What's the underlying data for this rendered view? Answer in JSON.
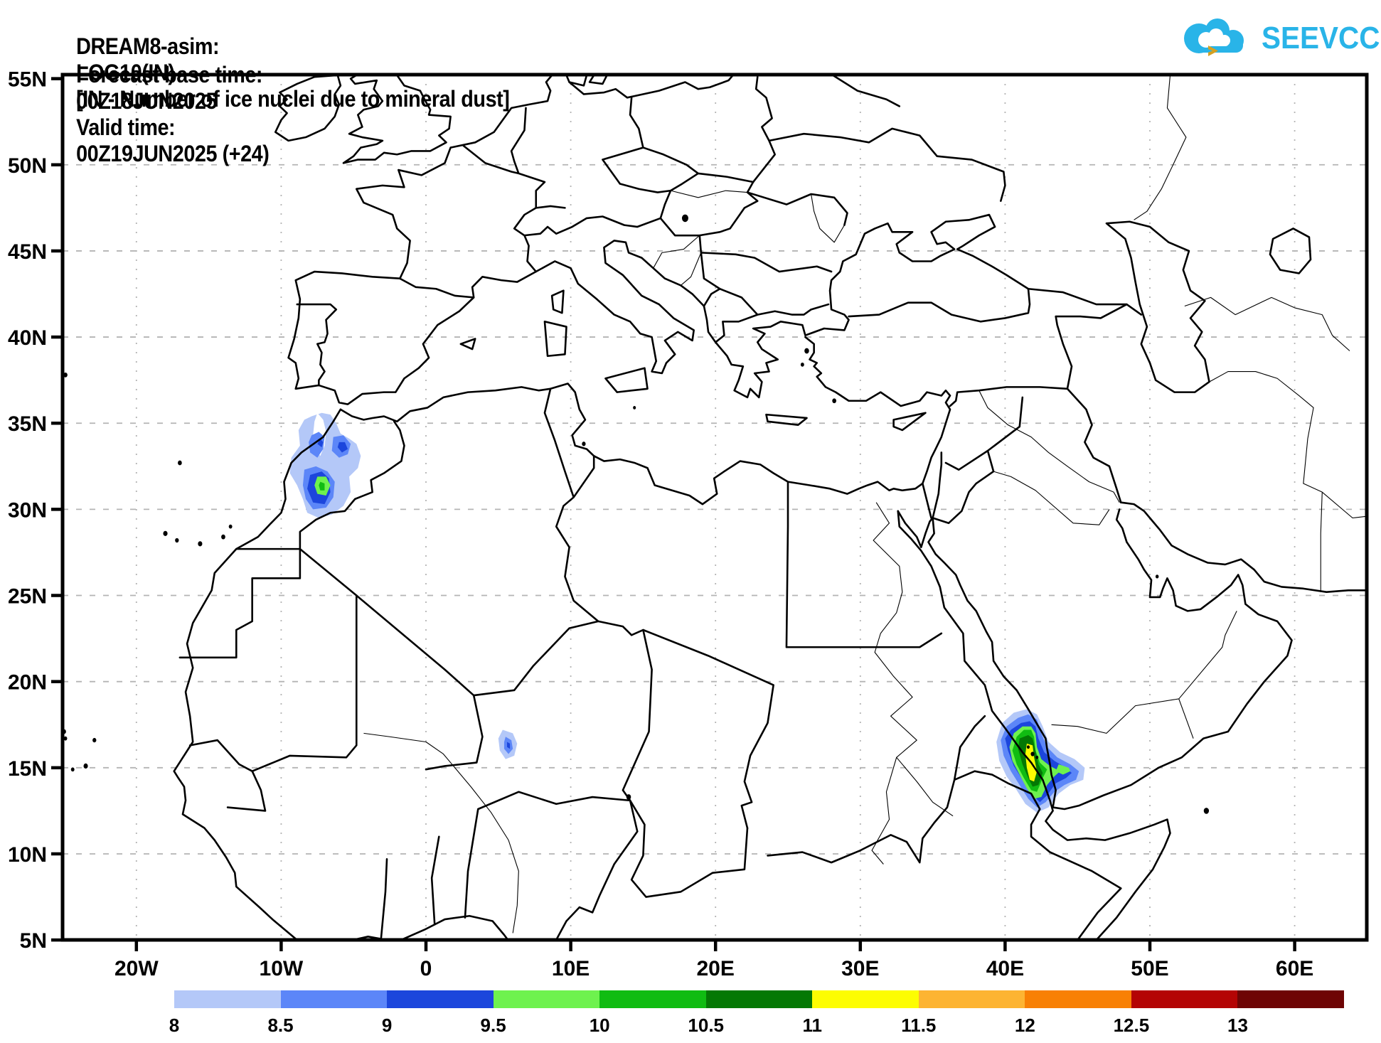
{
  "header": {
    "model": "DREAM8-asim:",
    "variable": "LOG10(IN)",
    "description": "[IN - Number of ice nuclei due to mineral dust]",
    "forecast_label": "Forecast base time:",
    "forecast_value": "00Z18JUN2025",
    "valid_label": "Valid time:",
    "valid_value": "00Z19JUN2025 (+24)"
  },
  "logo": {
    "text": "SEEVCCC",
    "cloud_color": "#29b4e8",
    "arrow_color": "#d5a021"
  },
  "axes": {
    "lat_labels": [
      "55N",
      "50N",
      "45N",
      "40N",
      "35N",
      "30N",
      "25N",
      "20N",
      "15N",
      "10N",
      "5N"
    ],
    "lon_labels": [
      "20W",
      "10W",
      "0",
      "10E",
      "20E",
      "30E",
      "40E",
      "50E",
      "60E"
    ]
  },
  "colorbar": {
    "labels": [
      "8",
      "8.5",
      "9",
      "9.5",
      "10",
      "10.5",
      "11",
      "11.5",
      "12",
      "12.5",
      "13"
    ],
    "colors": [
      "#b4c8f8",
      "#5c86f8",
      "#1c46dc",
      "#6ef24e",
      "#10bc12",
      "#047804",
      "#fdfd02",
      "#fdb432",
      "#f88004",
      "#b40404",
      "#6e0404"
    ]
  },
  "map_plumes": [
    {
      "region": "northwest-africa-morocco",
      "approx_center": "7W, 31N",
      "max_shade_level": "10-10.5"
    },
    {
      "region": "sahel-niger",
      "approx_center": "6E, 16N",
      "max_shade_level": "9-9.5"
    },
    {
      "region": "red-sea-horn-of-africa",
      "approx_center": "42E, 15N",
      "max_shade_level": "11-11.5"
    }
  ]
}
